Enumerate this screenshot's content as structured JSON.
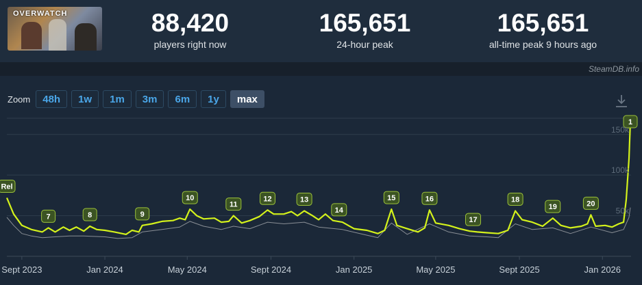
{
  "game": {
    "logo_text": "OVERWATCH"
  },
  "stats": [
    {
      "value": "88,420",
      "label": "players right now"
    },
    {
      "value": "165,651",
      "label": "24-hour peak"
    },
    {
      "value": "165,651",
      "label": "all-time peak 9 hours ago"
    }
  ],
  "credit": "SteamDB.info",
  "zoom": {
    "label": "Zoom",
    "options": [
      "48h",
      "1w",
      "1m",
      "3m",
      "6m",
      "1y",
      "max"
    ],
    "active": "max"
  },
  "colors": {
    "primary_line": "#d4f21b",
    "secondary_line": "#8a8f96",
    "marker_bg": "#3b5323",
    "marker_border": "#9cc23a",
    "grid": "#2f3d4c",
    "axis_text": "#c7d0d8"
  },
  "chart_data": {
    "type": "line",
    "y_tick_labels": [
      "50k",
      "100k",
      "150k"
    ],
    "y_ticks": [
      50000,
      100000,
      150000
    ],
    "ylim": [
      0,
      170000
    ],
    "x_tick_labels": [
      "Sept 2023",
      "Jan 2024",
      "May 2024",
      "Sept 2024",
      "Jan 2025",
      "May 2025",
      "Sept 2025",
      "Jan 2026"
    ],
    "x_ticks": [
      "2023-09-01",
      "2024-01-01",
      "2024-05-01",
      "2024-09-01",
      "2025-01-01",
      "2025-05-01",
      "2025-09-01",
      "2026-01-01"
    ],
    "x_range": [
      "2023-08-10",
      "2026-02-12"
    ],
    "grid": true,
    "series": [
      {
        "points": [
          [
            "2023-08-10",
            72000
          ],
          [
            "2023-08-20",
            52000
          ],
          [
            "2023-09-01",
            38000
          ],
          [
            "2023-09-15",
            33000
          ],
          [
            "2023-10-01",
            30000
          ],
          [
            "2023-10-10",
            35000
          ],
          [
            "2023-10-20",
            30000
          ],
          [
            "2023-11-01",
            36000
          ],
          [
            "2023-11-10",
            32000
          ],
          [
            "2023-11-20",
            36000
          ],
          [
            "2023-12-01",
            31000
          ],
          [
            "2023-12-10",
            37000
          ],
          [
            "2023-12-20",
            33000
          ],
          [
            "2024-01-01",
            32000
          ],
          [
            "2024-01-15",
            30000
          ],
          [
            "2024-02-01",
            27000
          ],
          [
            "2024-02-10",
            32000
          ],
          [
            "2024-02-20",
            30000
          ],
          [
            "2024-02-25",
            38000
          ],
          [
            "2024-03-10",
            40000
          ],
          [
            "2024-03-25",
            43000
          ],
          [
            "2024-04-10",
            44000
          ],
          [
            "2024-04-20",
            47000
          ],
          [
            "2024-04-28",
            45000
          ],
          [
            "2024-05-05",
            58000
          ],
          [
            "2024-05-15",
            50000
          ],
          [
            "2024-05-25",
            46000
          ],
          [
            "2024-06-10",
            47000
          ],
          [
            "2024-06-20",
            42000
          ],
          [
            "2024-07-01",
            43000
          ],
          [
            "2024-07-08",
            50000
          ],
          [
            "2024-07-20",
            41000
          ],
          [
            "2024-08-01",
            44000
          ],
          [
            "2024-08-15",
            49000
          ],
          [
            "2024-08-27",
            57000
          ],
          [
            "2024-09-05",
            52000
          ],
          [
            "2024-09-20",
            52000
          ],
          [
            "2024-10-01",
            55000
          ],
          [
            "2024-10-10",
            50000
          ],
          [
            "2024-10-20",
            56000
          ],
          [
            "2024-11-01",
            50000
          ],
          [
            "2024-11-10",
            45000
          ],
          [
            "2024-11-20",
            52000
          ],
          [
            "2024-12-01",
            44000
          ],
          [
            "2024-12-15",
            42000
          ],
          [
            "2025-01-01",
            34000
          ],
          [
            "2025-01-20",
            32000
          ],
          [
            "2025-02-05",
            28000
          ],
          [
            "2025-02-15",
            32000
          ],
          [
            "2025-02-25",
            58000
          ],
          [
            "2025-03-05",
            38000
          ],
          [
            "2025-03-20",
            34000
          ],
          [
            "2025-04-05",
            30000
          ],
          [
            "2025-04-15",
            35000
          ],
          [
            "2025-04-22",
            57000
          ],
          [
            "2025-05-01",
            41000
          ],
          [
            "2025-05-20",
            38000
          ],
          [
            "2025-06-05",
            34000
          ],
          [
            "2025-06-20",
            31000
          ],
          [
            "2025-07-01",
            30000
          ],
          [
            "2025-07-15",
            29000
          ],
          [
            "2025-08-01",
            28000
          ],
          [
            "2025-08-15",
            32000
          ],
          [
            "2025-08-26",
            56000
          ],
          [
            "2025-09-05",
            45000
          ],
          [
            "2025-09-20",
            42000
          ],
          [
            "2025-10-05",
            37000
          ],
          [
            "2025-10-20",
            47000
          ],
          [
            "2025-11-01",
            38000
          ],
          [
            "2025-11-15",
            35000
          ],
          [
            "2025-12-01",
            37000
          ],
          [
            "2025-12-10",
            40000
          ],
          [
            "2025-12-15",
            51000
          ],
          [
            "2025-12-22",
            37000
          ],
          [
            "2026-01-05",
            38000
          ],
          [
            "2026-01-15",
            36000
          ],
          [
            "2026-01-25",
            40000
          ],
          [
            "2026-02-01",
            42000
          ],
          [
            "2026-02-05",
            70000
          ],
          [
            "2026-02-09",
            120000
          ],
          [
            "2026-02-11",
            165651
          ]
        ]
      },
      {
        "points": [
          [
            "2023-08-10",
            48000
          ],
          [
            "2023-08-20",
            38000
          ],
          [
            "2023-09-01",
            28000
          ],
          [
            "2023-09-15",
            25000
          ],
          [
            "2023-10-01",
            23000
          ],
          [
            "2023-10-20",
            24000
          ],
          [
            "2023-11-10",
            25000
          ],
          [
            "2023-12-01",
            25000
          ],
          [
            "2024-01-01",
            24000
          ],
          [
            "2024-01-20",
            22000
          ],
          [
            "2024-02-10",
            23000
          ],
          [
            "2024-02-25",
            30000
          ],
          [
            "2024-03-25",
            33000
          ],
          [
            "2024-04-20",
            36000
          ],
          [
            "2024-05-05",
            43000
          ],
          [
            "2024-05-25",
            37000
          ],
          [
            "2024-06-20",
            33000
          ],
          [
            "2024-07-08",
            37000
          ],
          [
            "2024-08-01",
            34000
          ],
          [
            "2024-08-27",
            42000
          ],
          [
            "2024-09-20",
            40000
          ],
          [
            "2024-10-20",
            42000
          ],
          [
            "2024-11-10",
            36000
          ],
          [
            "2024-12-15",
            33000
          ],
          [
            "2025-01-20",
            26000
          ],
          [
            "2025-02-05",
            23000
          ],
          [
            "2025-02-25",
            41000
          ],
          [
            "2025-03-20",
            27000
          ],
          [
            "2025-04-22",
            40000
          ],
          [
            "2025-05-20",
            30000
          ],
          [
            "2025-06-20",
            25000
          ],
          [
            "2025-07-15",
            24000
          ],
          [
            "2025-08-01",
            23000
          ],
          [
            "2025-08-26",
            40000
          ],
          [
            "2025-09-20",
            33000
          ],
          [
            "2025-10-20",
            35000
          ],
          [
            "2025-11-15",
            28000
          ],
          [
            "2025-12-15",
            36000
          ],
          [
            "2026-01-15",
            29000
          ],
          [
            "2026-02-01",
            33000
          ],
          [
            "2026-02-09",
            48000
          ],
          [
            "2026-02-11",
            60000
          ]
        ]
      }
    ],
    "annotations": [
      {
        "label": "Rel",
        "date": "2023-08-10",
        "value": 72000
      },
      {
        "label": "7",
        "date": "2023-10-10",
        "value": 35000
      },
      {
        "label": "8",
        "date": "2023-12-10",
        "value": 37000
      },
      {
        "label": "9",
        "date": "2024-02-25",
        "value": 38000
      },
      {
        "label": "10",
        "date": "2024-05-05",
        "value": 58000
      },
      {
        "label": "11",
        "date": "2024-07-08",
        "value": 50000
      },
      {
        "label": "12",
        "date": "2024-08-27",
        "value": 57000
      },
      {
        "label": "13",
        "date": "2024-10-20",
        "value": 56000
      },
      {
        "label": "14",
        "date": "2024-12-10",
        "value": 43000
      },
      {
        "label": "15",
        "date": "2025-02-25",
        "value": 58000
      },
      {
        "label": "16",
        "date": "2025-04-22",
        "value": 57000
      },
      {
        "label": "17",
        "date": "2025-06-25",
        "value": 31000
      },
      {
        "label": "18",
        "date": "2025-08-26",
        "value": 56000
      },
      {
        "label": "19",
        "date": "2025-10-20",
        "value": 47000
      },
      {
        "label": "20",
        "date": "2025-12-15",
        "value": 51000
      },
      {
        "label": "1",
        "date": "2026-02-11",
        "value": 165651
      }
    ]
  }
}
